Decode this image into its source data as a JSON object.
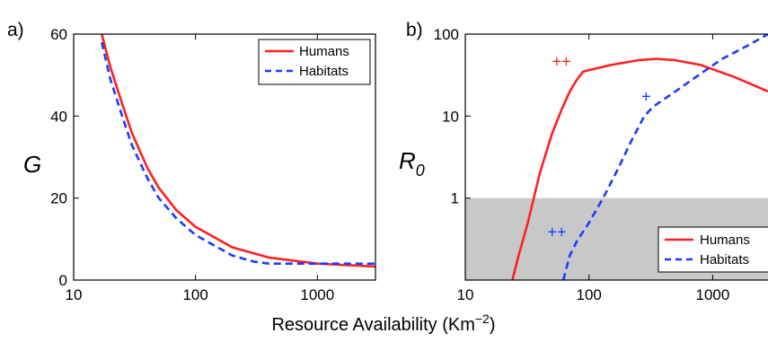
{
  "colors": {
    "humans": "#ff2020",
    "habitats": "#1a3cff",
    "shade": "#c8c8c8"
  },
  "xlabel": {
    "text": "Resource Availability (Km",
    "sup": "−2",
    "close": ")"
  },
  "chart_data": [
    {
      "panel": "a)",
      "type": "line",
      "ylabel": "G",
      "xscale": "log",
      "xlim": [
        10,
        3000
      ],
      "ylim": [
        0,
        60
      ],
      "xticks": [
        10,
        100,
        1000
      ],
      "xticklabels": [
        "10",
        "100",
        "1000"
      ],
      "yticks": [
        0,
        20,
        40,
        60
      ],
      "yticklabels": [
        "0",
        "20",
        "40",
        "60"
      ],
      "legend": {
        "position": "top-right"
      },
      "series": [
        {
          "name": "Humans",
          "style": "solid",
          "color": "#ff2020",
          "x": [
            17,
            20,
            25,
            30,
            40,
            50,
            70,
            100,
            200,
            400,
            1000,
            3000
          ],
          "y": [
            60,
            52,
            43,
            36,
            27.5,
            22.5,
            17,
            13,
            8,
            5.5,
            4,
            3.3
          ]
        },
        {
          "name": "Habitats",
          "style": "dashed",
          "color": "#1a3cff",
          "x": [
            17,
            20,
            25,
            30,
            40,
            50,
            70,
            100,
            200,
            300,
            400,
            1000,
            3000
          ],
          "y": [
            58,
            49,
            40,
            33,
            25,
            20,
            15,
            11,
            6,
            4.5,
            4,
            4,
            4
          ]
        }
      ]
    },
    {
      "panel": "b)",
      "type": "line",
      "ylabel": "R",
      "ylabel_sub": "0",
      "xscale": "log",
      "yscale": "log",
      "xlim": [
        10,
        2800
      ],
      "ylim": [
        0.1,
        100
      ],
      "xticks": [
        10,
        100,
        1000
      ],
      "xticklabels": [
        "10",
        "100",
        "1000"
      ],
      "yticks": [
        1,
        10,
        100
      ],
      "yticklabels": [
        "1",
        "10",
        "100"
      ],
      "shaded_below": 1,
      "legend": {
        "position": "bottom-right"
      },
      "annotations": [
        {
          "text": "++",
          "x": 60,
          "y": 40,
          "color": "#ff2020"
        },
        {
          "text": "+",
          "x": 290,
          "y": 15,
          "color": "#1a3cff"
        },
        {
          "text": "++",
          "x": 55,
          "y": 0.33,
          "color": "#1a3cff"
        }
      ],
      "series": [
        {
          "name": "Humans",
          "style": "solid",
          "color": "#ff2020",
          "x": [
            24,
            27,
            32,
            40,
            50,
            60,
            70,
            80,
            90,
            150,
            250,
            350,
            500,
            800,
            1500,
            2800
          ],
          "y": [
            0.1,
            0.2,
            0.5,
            2,
            6,
            12,
            20,
            28,
            35,
            42,
            48,
            50,
            48,
            42,
            30,
            20
          ]
        },
        {
          "name": "Habitats",
          "style": "dashed",
          "color": "#1a3cff",
          "x": [
            62,
            70,
            80,
            100,
            130,
            170,
            220,
            280,
            330,
            500,
            800,
            1200,
            2000,
            2800
          ],
          "y": [
            0.1,
            0.2,
            0.3,
            0.5,
            1,
            2.2,
            5,
            10,
            13,
            20,
            33,
            50,
            75,
            100
          ]
        }
      ]
    }
  ]
}
